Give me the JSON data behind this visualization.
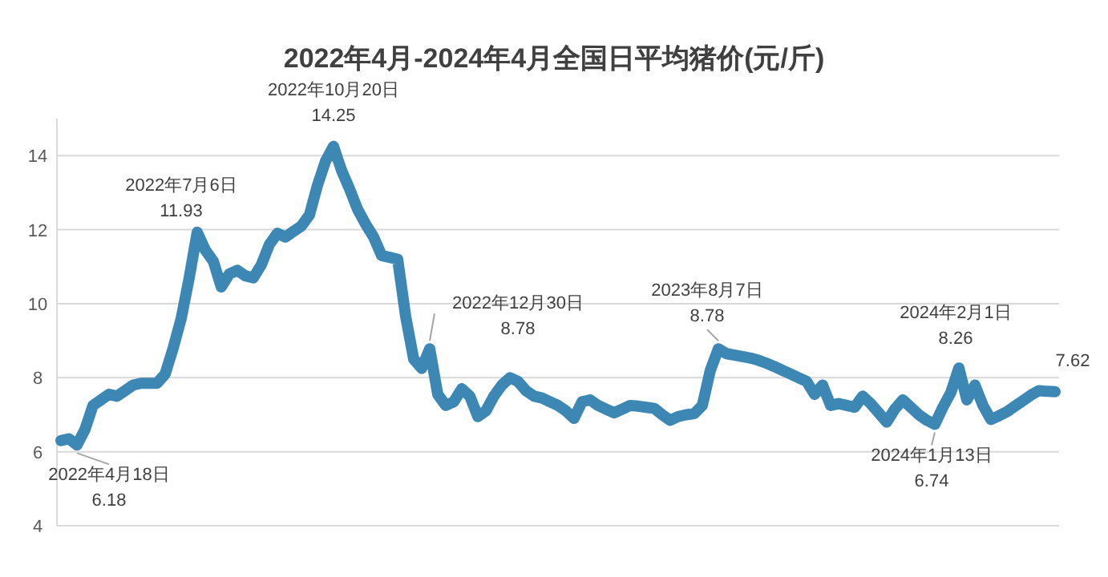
{
  "chart_data": {
    "type": "line",
    "title": "2022年4月-2024年4月全国日平均猪价(元/斤)",
    "categories": [
      null,
      null,
      null,
      null,
      null,
      null,
      null,
      null,
      null,
      null,
      null,
      null,
      null,
      null,
      null,
      null,
      null,
      null,
      null,
      null,
      null,
      null,
      null,
      null,
      null,
      null,
      null,
      null,
      null,
      null,
      null,
      null,
      null,
      null,
      null,
      null,
      null,
      null,
      null,
      null,
      null,
      null,
      null,
      null,
      null,
      null,
      null,
      null,
      null,
      null,
      null,
      null,
      null,
      null,
      null,
      null,
      null,
      null,
      null,
      null,
      null,
      null,
      null,
      null,
      null,
      null,
      null,
      null,
      null,
      null,
      null,
      null,
      null,
      null,
      null,
      null,
      null,
      null,
      null,
      null,
      null,
      null,
      null,
      null,
      null,
      null,
      null,
      null,
      null,
      null,
      null,
      null,
      null,
      null,
      null,
      null,
      null,
      null,
      null,
      null,
      null,
      null,
      null,
      null,
      null,
      null,
      null,
      null,
      null,
      null,
      null,
      null,
      null,
      null,
      null,
      null,
      null,
      null,
      null,
      null,
      null,
      null,
      null,
      null,
      null
    ],
    "series": [
      {
        "color": "#3c87b3",
        "values": [
          6.3,
          6.35,
          6.18,
          6.6,
          7.25,
          7.4,
          7.55,
          7.5,
          7.65,
          7.8,
          7.85,
          7.85,
          7.85,
          8.1,
          8.8,
          9.6,
          10.7,
          11.93,
          11.45,
          11.15,
          10.45,
          10.8,
          10.9,
          10.75,
          10.7,
          11.05,
          11.6,
          11.9,
          11.8,
          11.95,
          12.1,
          12.4,
          13.2,
          13.85,
          14.25,
          13.6,
          13.1,
          12.55,
          12.15,
          11.8,
          11.3,
          11.25,
          11.2,
          9.65,
          8.5,
          8.25,
          8.78,
          7.55,
          7.25,
          7.35,
          7.7,
          7.5,
          6.95,
          7.1,
          7.5,
          7.8,
          8.0,
          7.9,
          7.65,
          7.5,
          7.45,
          7.35,
          7.25,
          7.1,
          6.9,
          7.35,
          7.4,
          7.25,
          7.15,
          7.05,
          7.15,
          7.25,
          7.23,
          7.2,
          7.17,
          7.0,
          6.85,
          6.95,
          7.0,
          7.03,
          7.25,
          8.2,
          8.78,
          8.65,
          8.61,
          8.57,
          8.53,
          8.47,
          8.39,
          8.3,
          8.2,
          8.1,
          8.0,
          7.9,
          7.55,
          7.8,
          7.25,
          7.3,
          7.25,
          7.2,
          7.5,
          7.3,
          7.05,
          6.8,
          7.15,
          7.4,
          7.2,
          7.0,
          6.85,
          6.74,
          7.2,
          7.6,
          8.26,
          7.4,
          7.8,
          7.25,
          6.87,
          6.97,
          7.08,
          7.23,
          7.38,
          7.53,
          7.65,
          7.63,
          7.62
        ]
      }
    ],
    "ylim": [
      4,
      15
    ],
    "yticks": [
      4,
      6,
      8,
      10,
      12,
      14
    ],
    "grid": "y",
    "tick_labels": "y",
    "annotations": [
      "2022年4月18日\n6.18",
      "2022年7月6日\n11.93",
      "2022年10月20日\n14.25",
      "2022年12月30日\n8.78",
      "2023年8月7日\n8.78",
      "2024年1月13日\n6.74",
      "2024年2月1日\n8.26",
      "7.62"
    ]
  }
}
